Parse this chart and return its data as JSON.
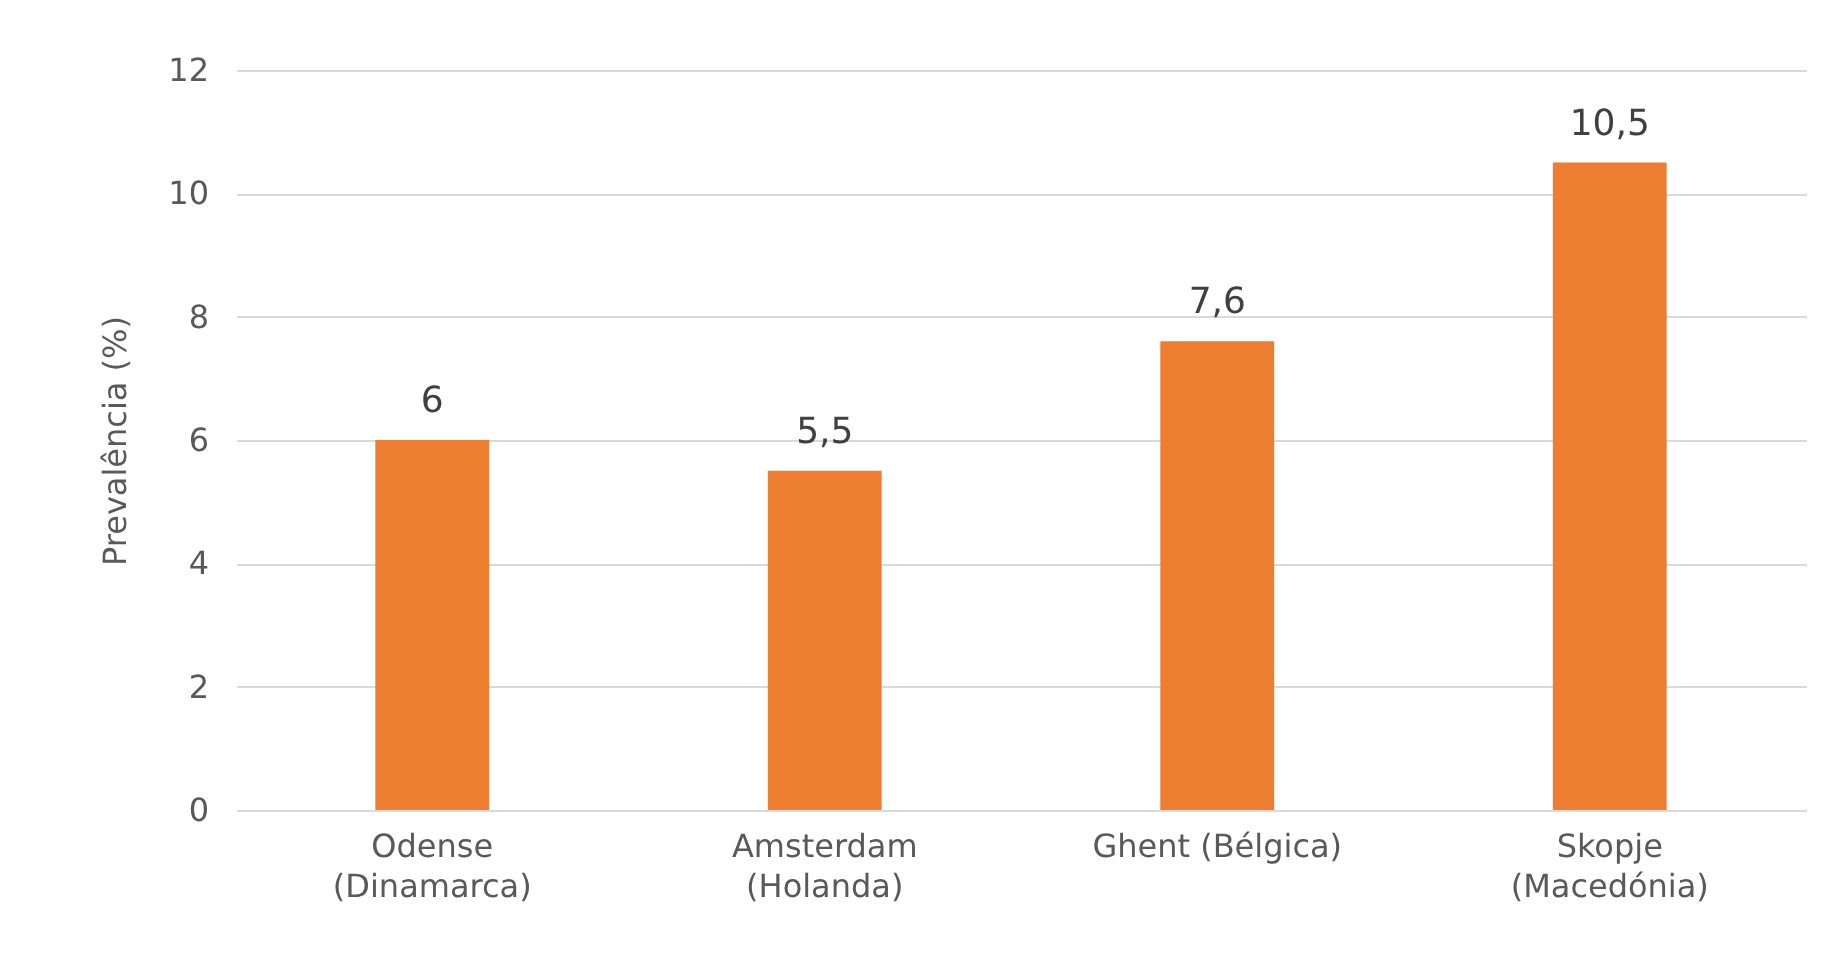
{
  "chart_data": {
    "type": "bar",
    "ylabel": "Prevalência (%)",
    "categories": [
      "Odense (Dinamarca)",
      "Amsterdam (Holanda)",
      "Ghent (Bélgica)",
      "Skopje (Macedónia)"
    ],
    "values": [
      6,
      5.5,
      7.6,
      10.5
    ],
    "value_labels": [
      "6",
      "5,5",
      "7,6",
      "10,5"
    ],
    "color": "#ed7d31",
    "ylim": [
      0,
      12
    ],
    "yticks": [
      0,
      2,
      4,
      6,
      8,
      10,
      12
    ],
    "grid": "y"
  }
}
